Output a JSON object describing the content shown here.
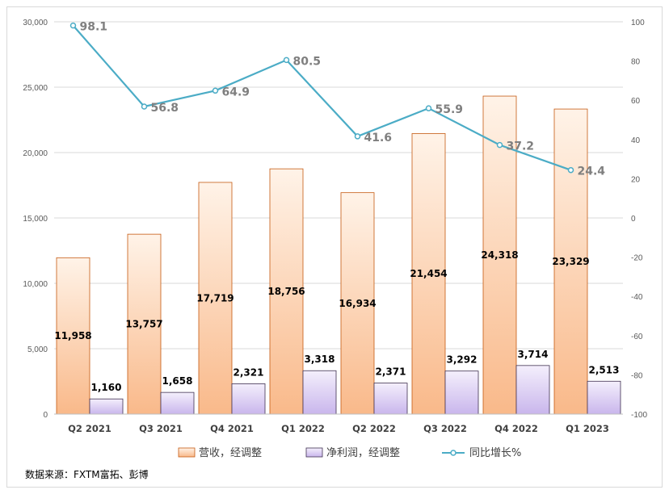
{
  "chart_data": {
    "type": "bar",
    "categories": [
      "Q2 2021",
      "Q3 2021",
      "Q4 2021",
      "Q1 2022",
      "Q2 2022",
      "Q3 2022",
      "Q4 2022",
      "Q1 2023"
    ],
    "series": [
      {
        "name": "营收，经调整",
        "type": "bar",
        "axis": "left",
        "values": [
          11958,
          13757,
          17719,
          18756,
          16934,
          21454,
          24318,
          23329
        ],
        "labels": [
          "11,958",
          "13,757",
          "17,719",
          "18,756",
          "16,934",
          "21,454",
          "24,318",
          "23,329"
        ],
        "color": "#f8cba0"
      },
      {
        "name": "净利润，经调整",
        "type": "bar",
        "axis": "left",
        "values": [
          1160,
          1658,
          2321,
          3318,
          2371,
          3292,
          3714,
          2513
        ],
        "labels": [
          "1,160",
          "1,658",
          "2,321",
          "3,318",
          "2,371",
          "3,292",
          "3,714",
          "2,513"
        ],
        "color": "#d5c6f0"
      },
      {
        "name": "同比增长%",
        "type": "line",
        "axis": "right",
        "values": [
          98.1,
          56.8,
          64.9,
          80.5,
          41.6,
          55.9,
          37.2,
          24.4
        ],
        "labels": [
          "98.1",
          "56.8",
          "64.9",
          "80.5",
          "41.6",
          "55.9",
          "37.2",
          "24.4"
        ],
        "color": "#4bacc6"
      }
    ],
    "y_left": {
      "range": [
        0,
        30000
      ],
      "ticks": [
        "0",
        "5,000",
        "10,000",
        "15,000",
        "20,000",
        "25,000",
        "30,000"
      ]
    },
    "y_right": {
      "range": [
        -100,
        100
      ],
      "ticks": [
        "-100",
        "-80",
        "-60",
        "-40",
        "-20",
        "0",
        "20",
        "40",
        "60",
        "80",
        "100"
      ]
    },
    "grid": true,
    "legend": "bottom"
  },
  "source_note": "数据来源：FXTM富拓、彭博"
}
